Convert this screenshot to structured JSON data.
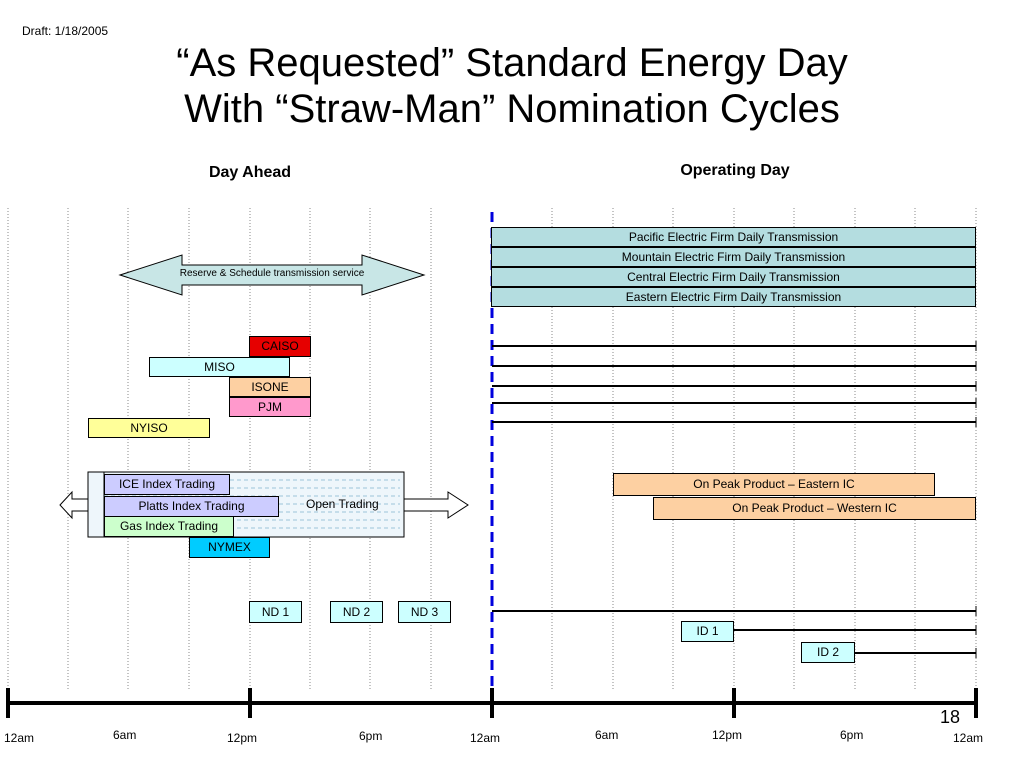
{
  "draft_label": "Draft: 1/18/2005",
  "title_line1": "“As Requested” Standard Energy Day",
  "title_line2": "With “Straw-Man” Nomination Cycles",
  "section_day_ahead": "Day Ahead",
  "section_operating_day": "Operating Day",
  "transmission_bars": [
    "Pacific Electric Firm Daily Transmission",
    "Mountain Electric Firm Daily Transmission",
    "Central Electric Firm Daily Transmission",
    "Eastern Electric Firm Daily Transmission"
  ],
  "reserve_arrow_label": "Reserve & Schedule transmission service",
  "iso_boxes": {
    "caiso": "CAISO",
    "miso": "MISO",
    "isone": "ISONE",
    "pjm": "PJM",
    "nyiso": "NYISO"
  },
  "trading": {
    "ice": "ICE Index Trading",
    "platts": "Platts Index Trading",
    "gas": "Gas Index Trading",
    "nymex": "NYMEX",
    "open_trading": "Open Trading"
  },
  "on_peak": {
    "eastern": "On Peak Product – Eastern IC",
    "western": "On Peak Product – Western IC"
  },
  "nominations": {
    "nd1": "ND 1",
    "nd2": "ND 2",
    "nd3": "ND 3",
    "id1": "ID 1",
    "id2": "ID 2"
  },
  "time_labels": [
    "12am",
    "6am",
    "12pm",
    "6pm",
    "12am",
    "6am",
    "12pm",
    "6pm",
    "12am"
  ],
  "page_number": "18",
  "colors": {
    "transmission": "#b4dde0",
    "reserve_arrow": "#c8e6e6",
    "caiso": "#e60000",
    "miso": "#ccffff",
    "isone": "#fdd0a2",
    "pjm": "#ff99cc",
    "nyiso": "#ffff99",
    "ice": "#ccccff",
    "platts": "#ccccff",
    "gas": "#ccffcc",
    "nymex": "#00ccff",
    "on_peak": "#fdd0a2",
    "nominations": "#ccffff",
    "midnight_line": "#0000dd"
  }
}
